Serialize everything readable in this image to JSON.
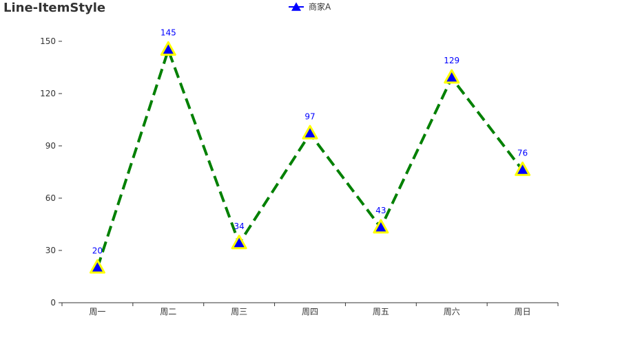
{
  "chart_data": {
    "type": "line",
    "title": "Line-ItemStyle",
    "categories": [
      "周一",
      "周二",
      "周三",
      "周四",
      "周五",
      "周六",
      "周日"
    ],
    "series": [
      {
        "name": "商家A",
        "values": [
          20,
          145,
          34,
          97,
          43,
          129,
          76
        ]
      }
    ],
    "ylim": [
      0,
      150
    ],
    "yticks": [
      0,
      30,
      60,
      90,
      120,
      150
    ],
    "xlabel": "",
    "ylabel": "",
    "grid": false,
    "legend_position": "top-center",
    "show_data_labels": true,
    "line_style": "dashed",
    "marker": "triangle",
    "colors": {
      "line": "#008000",
      "marker_fill": "#0000ff",
      "marker_border": "#ffff00",
      "label": "#0000ff",
      "legend_line": "#0000ff",
      "axis": "#333333"
    }
  }
}
